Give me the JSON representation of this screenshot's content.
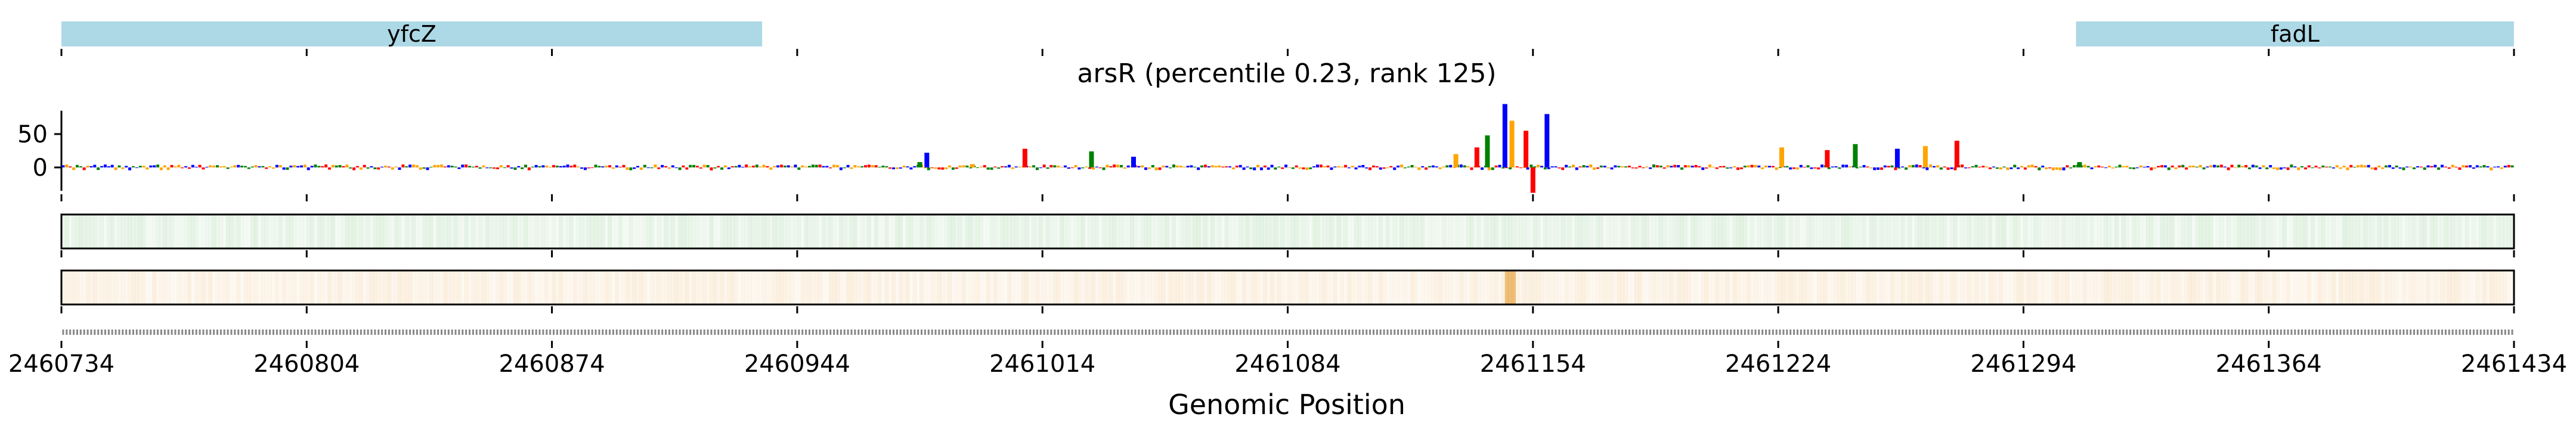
{
  "title": "arsR (percentile 0.23, rank 125)",
  "chart_data": {
    "type": "line",
    "title": "arsR (percentile 0.23, rank 125)",
    "xlabel": "Genomic Position",
    "ylabel": "",
    "xlim": [
      2460734,
      2461434
    ],
    "x_ticks": [
      2460734,
      2460804,
      2460874,
      2460944,
      2461014,
      2461084,
      2461154,
      2461224,
      2461294,
      2461364,
      2461434
    ],
    "x_tick_labels": [
      "2460734",
      "2460804",
      "2460874",
      "2460944",
      "2461014",
      "2461084",
      "2461154",
      "2461224",
      "2461294",
      "2461364",
      "2461434"
    ],
    "ylim": [
      -40,
      95
    ],
    "y_ticks": [
      0,
      50
    ],
    "y_tick_labels": [
      "0",
      "50"
    ],
    "genes": [
      {
        "name": "yfcZ",
        "start": 2460734,
        "end": 2460934
      },
      {
        "name": "fadL",
        "start": 2461309,
        "end": 2461434
      }
    ],
    "peaks": [
      {
        "x": 2460979,
        "value": 8
      },
      {
        "x": 2460981,
        "value": 22
      },
      {
        "x": 2460994,
        "value": 5
      },
      {
        "x": 2461009,
        "value": 28
      },
      {
        "x": 2461028,
        "value": 24
      },
      {
        "x": 2461040,
        "value": 16
      },
      {
        "x": 2461132,
        "value": 20
      },
      {
        "x": 2461138,
        "value": 30
      },
      {
        "x": 2461141,
        "value": 48
      },
      {
        "x": 2461146,
        "value": 95
      },
      {
        "x": 2461148,
        "value": 70
      },
      {
        "x": 2461152,
        "value": 55
      },
      {
        "x": 2461154,
        "value": -38
      },
      {
        "x": 2461158,
        "value": 80
      },
      {
        "x": 2461225,
        "value": 30
      },
      {
        "x": 2461238,
        "value": 26
      },
      {
        "x": 2461246,
        "value": 35
      },
      {
        "x": 2461258,
        "value": 28
      },
      {
        "x": 2461266,
        "value": 32
      },
      {
        "x": 2461275,
        "value": 40
      },
      {
        "x": 2461310,
        "value": 8
      }
    ],
    "track1_color": "#2e9e2e",
    "track2_color": "#e0860a",
    "track2_hotspot": 2461147
  },
  "colors": {
    "gene_fill": "#add8e6",
    "base_A": "#008000",
    "base_C": "#0000ff",
    "base_G": "#ffa500",
    "base_T": "#ff0000"
  }
}
